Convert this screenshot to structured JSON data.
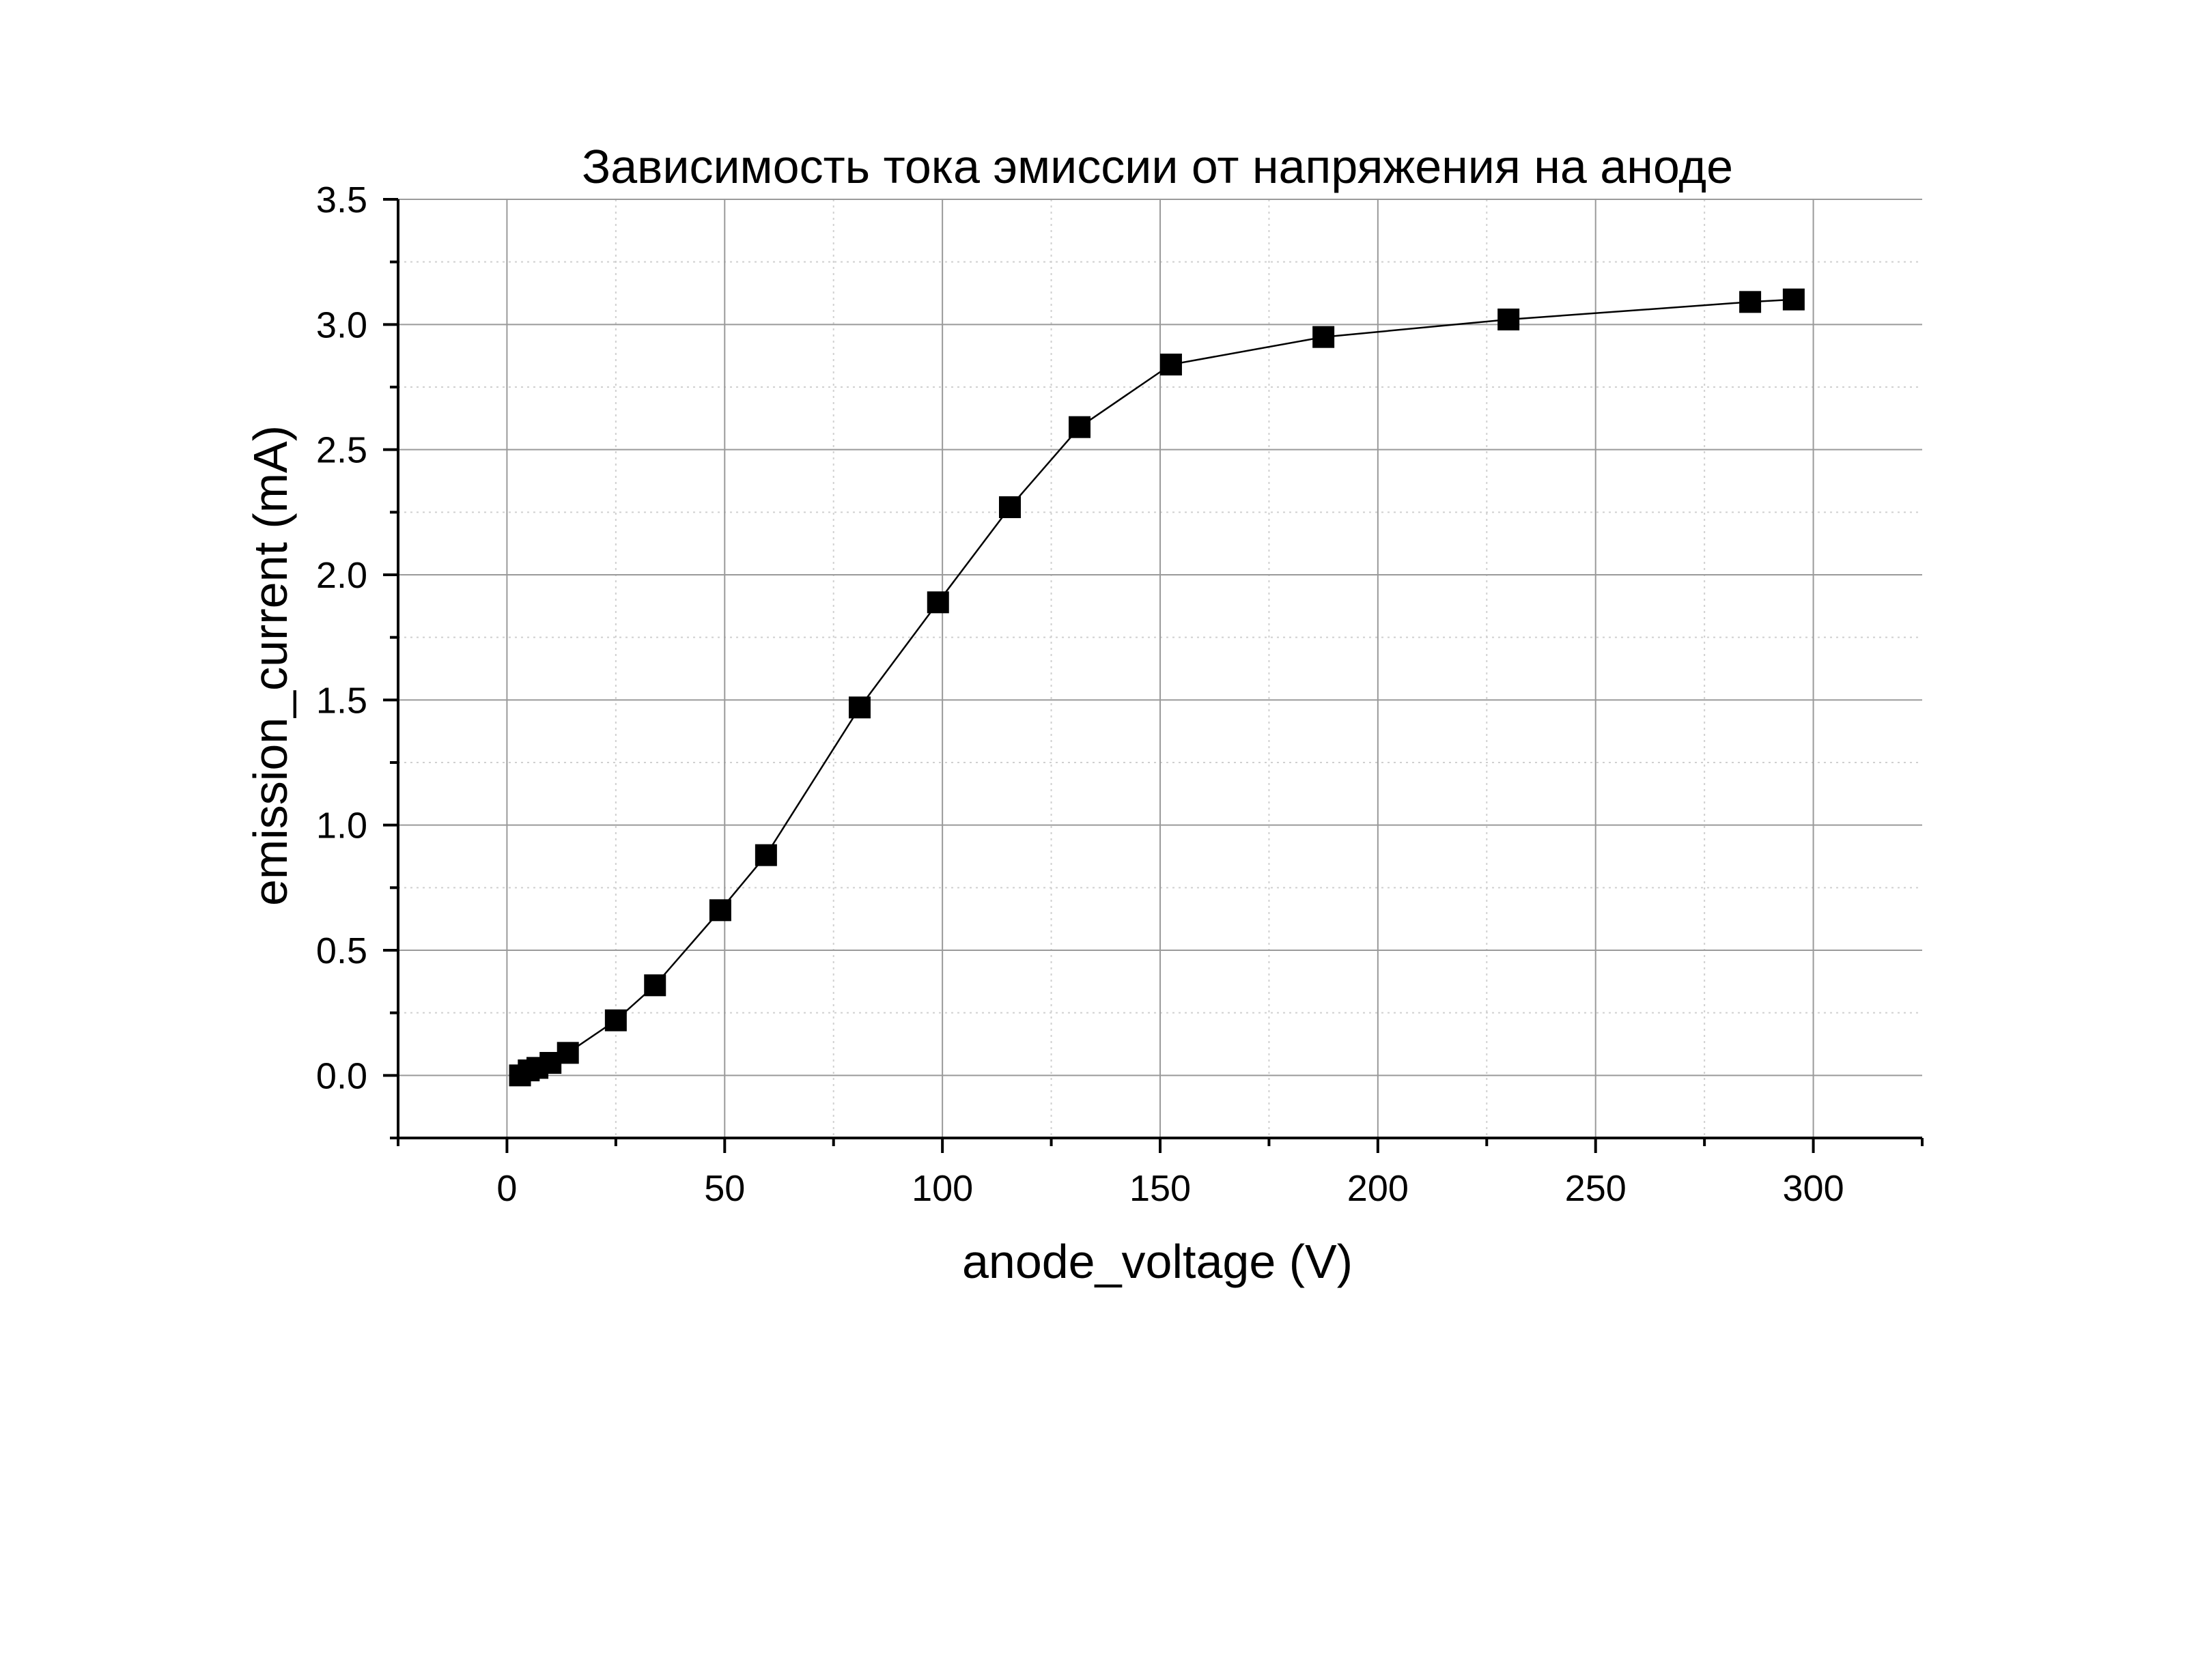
{
  "chart_data": {
    "type": "scatter",
    "title": "Зависимость тока эмиссии от напряжения на аноде",
    "xlabel": "anode_voltage (V)",
    "ylabel": "emission_current (mA)",
    "xlim": [
      -25,
      325
    ],
    "ylim": [
      -0.25,
      3.5
    ],
    "x_ticks": [
      0,
      50,
      100,
      150,
      200,
      250,
      300
    ],
    "x_tick_labels": [
      "0",
      "50",
      "100",
      "150",
      "200",
      "250",
      "300"
    ],
    "x_minor_ticks": [
      -25,
      25,
      75,
      125,
      175,
      225,
      275,
      325
    ],
    "y_ticks": [
      0.0,
      0.5,
      1.0,
      1.5,
      2.0,
      2.5,
      3.0,
      3.5
    ],
    "y_tick_labels": [
      "0.0",
      "0.5",
      "1.0",
      "1.5",
      "2.0",
      "2.5",
      "3.0",
      "3.5"
    ],
    "y_minor_ticks": [
      -0.25,
      0.25,
      0.75,
      1.25,
      1.75,
      2.25,
      2.75,
      3.25
    ],
    "grid": true,
    "marker": "square",
    "line_connecting_points": true,
    "series": [
      {
        "color": "#000000",
        "points": [
          {
            "x": 3,
            "y": 0.0
          },
          {
            "x": 5,
            "y": 0.02
          },
          {
            "x": 7,
            "y": 0.03
          },
          {
            "x": 10,
            "y": 0.05
          },
          {
            "x": 14,
            "y": 0.09
          },
          {
            "x": 25,
            "y": 0.22
          },
          {
            "x": 34,
            "y": 0.36
          },
          {
            "x": 49,
            "y": 0.66
          },
          {
            "x": 59.5,
            "y": 0.88
          },
          {
            "x": 81,
            "y": 1.47
          },
          {
            "x": 99,
            "y": 1.89
          },
          {
            "x": 115.5,
            "y": 2.27
          },
          {
            "x": 131.5,
            "y": 2.59
          },
          {
            "x": 152.5,
            "y": 2.84
          },
          {
            "x": 187.5,
            "y": 2.95
          },
          {
            "x": 230,
            "y": 3.02
          },
          {
            "x": 285.5,
            "y": 3.09
          },
          {
            "x": 295.5,
            "y": 3.1
          }
        ]
      }
    ]
  }
}
